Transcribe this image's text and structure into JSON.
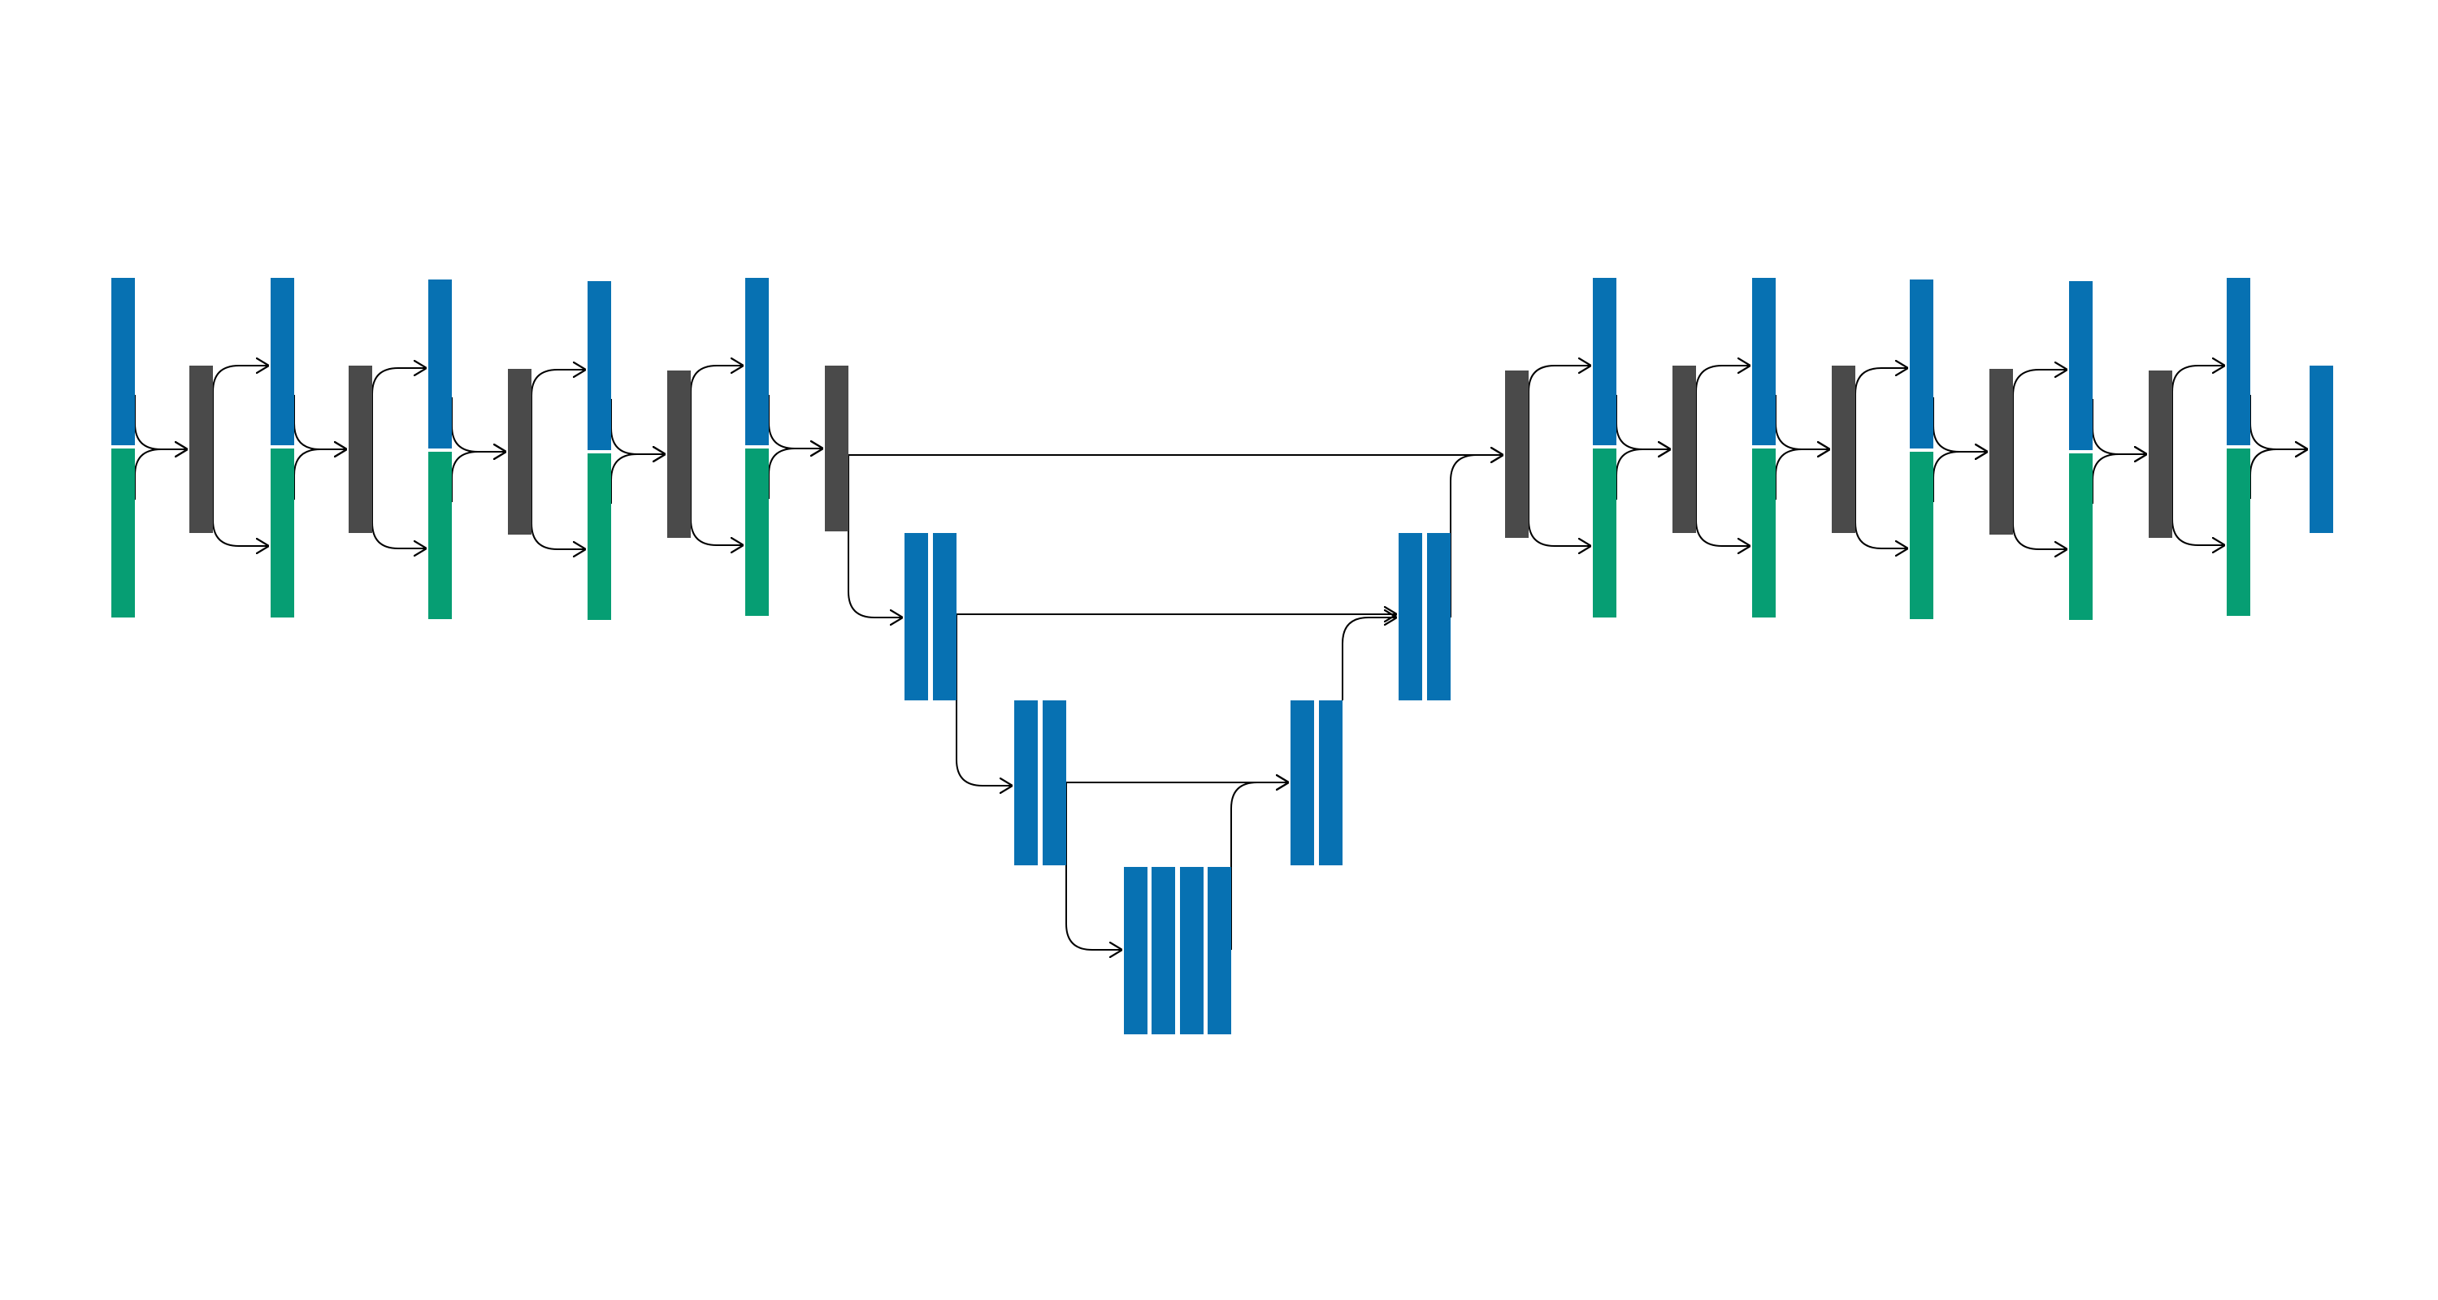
{
  "colors": {
    "background": "#ffffff",
    "blue_block": "#0771b2",
    "green_block": "#069e73",
    "gray_block": "#4a4a4a",
    "connector": "#000000"
  },
  "diagram": {
    "kind": "block-architecture",
    "text_labels": [],
    "left_stages": 5,
    "right_stages": 5,
    "bottleneck_depth_levels": 3
  }
}
